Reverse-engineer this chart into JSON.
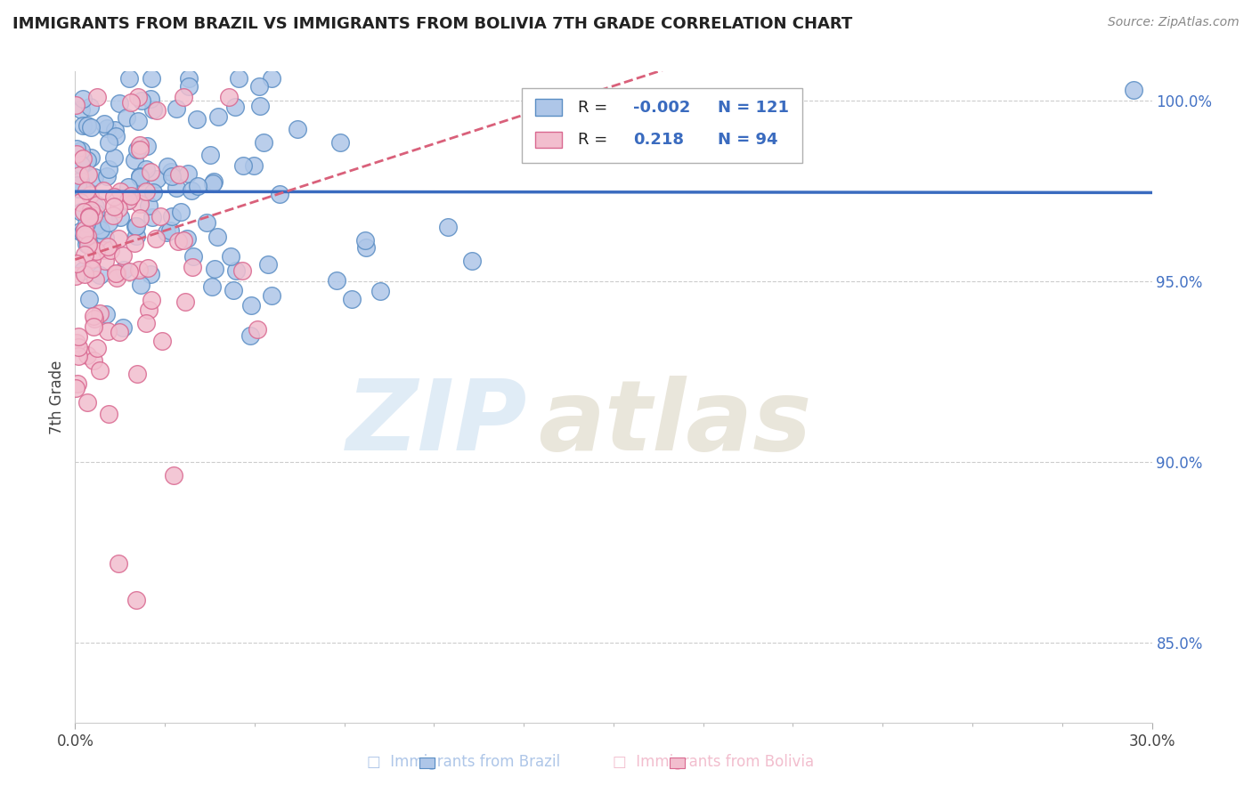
{
  "title": "IMMIGRANTS FROM BRAZIL VS IMMIGRANTS FROM BOLIVIA 7TH GRADE CORRELATION CHART",
  "source": "Source: ZipAtlas.com",
  "ylabel": "7th Grade",
  "brazil_color": "#aec6e8",
  "brazil_edge": "#5b8ec4",
  "bolivia_color": "#f2bece",
  "bolivia_edge": "#d96890",
  "brazil_line_color": "#3a6bbf",
  "bolivia_line_color": "#d9607a",
  "xlim": [
    0.0,
    0.3
  ],
  "ylim": [
    0.828,
    1.008
  ],
  "ytick_values": [
    0.85,
    0.9,
    0.95,
    1.0
  ],
  "ytick_labels": [
    "85.0%",
    "90.0%",
    "95.0%",
    "100.0%"
  ],
  "brazil_R": -0.002,
  "brazil_N": 121,
  "bolivia_R": 0.218,
  "bolivia_N": 94,
  "brazil_line_y_intercept": 0.9748,
  "brazil_line_slope": -0.001,
  "bolivia_line_y_intercept": 0.956,
  "bolivia_line_slope": 0.32
}
